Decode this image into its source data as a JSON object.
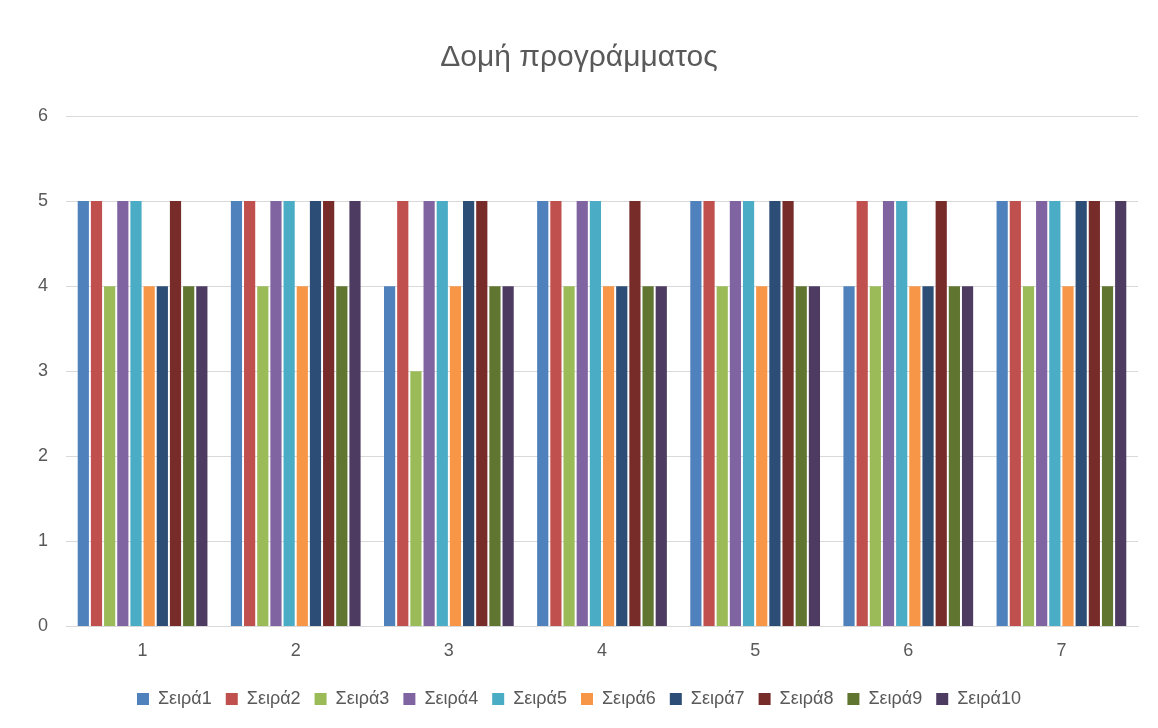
{
  "chart_data": {
    "type": "bar",
    "title": "Δομή προγράμματος",
    "categories": [
      "1",
      "2",
      "3",
      "4",
      "5",
      "6",
      "7"
    ],
    "series": [
      {
        "name": "Σειρά1",
        "color": "#4f81bd",
        "values": [
          5,
          5,
          4,
          5,
          5,
          4,
          5
        ]
      },
      {
        "name": "Σειρά2",
        "color": "#c0504d",
        "values": [
          5,
          5,
          5,
          5,
          5,
          5,
          5
        ]
      },
      {
        "name": "Σειρά3",
        "color": "#9bbb59",
        "values": [
          4,
          4,
          3,
          4,
          4,
          4,
          4
        ]
      },
      {
        "name": "Σειρά4",
        "color": "#8064a2",
        "values": [
          5,
          5,
          5,
          5,
          5,
          5,
          5
        ]
      },
      {
        "name": "Σειρά5",
        "color": "#4bacc6",
        "values": [
          5,
          5,
          5,
          5,
          5,
          5,
          5
        ]
      },
      {
        "name": "Σειρά6",
        "color": "#f79646",
        "values": [
          4,
          4,
          4,
          4,
          4,
          4,
          4
        ]
      },
      {
        "name": "Σειρά7",
        "color": "#2c4d75",
        "values": [
          4,
          5,
          5,
          4,
          5,
          4,
          5
        ]
      },
      {
        "name": "Σειρά8",
        "color": "#772c2a",
        "values": [
          5,
          5,
          5,
          5,
          5,
          5,
          5
        ]
      },
      {
        "name": "Σειρά9",
        "color": "#5f7530",
        "values": [
          4,
          4,
          4,
          4,
          4,
          4,
          4
        ]
      },
      {
        "name": "Σειρά10",
        "color": "#4d3b62",
        "values": [
          4,
          5,
          4,
          4,
          4,
          4,
          5
        ]
      }
    ],
    "ylim": [
      0,
      6
    ],
    "yticks": [
      0,
      1,
      2,
      3,
      4,
      5,
      6
    ],
    "grid": "y",
    "legend": "bottom"
  }
}
